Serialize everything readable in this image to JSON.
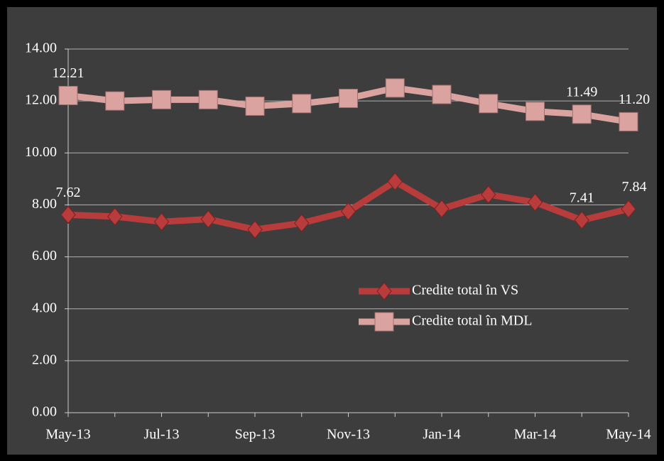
{
  "chart_data": {
    "type": "line",
    "categories": [
      "May-13",
      null,
      "Jul-13",
      null,
      "Sep-13",
      null,
      "Nov-13",
      null,
      "Jan-14",
      null,
      "Mar-14",
      null,
      "May-14"
    ],
    "series": [
      {
        "name": "Credite total în VS",
        "color": "#b83c3c",
        "marker": "diamond",
        "values": [
          7.62,
          7.55,
          7.35,
          7.45,
          7.05,
          7.3,
          7.75,
          8.9,
          7.85,
          8.4,
          8.1,
          7.41,
          7.84
        ],
        "value_labels": [
          "7.62",
          null,
          null,
          null,
          null,
          null,
          null,
          null,
          null,
          null,
          null,
          "7.41",
          "7.84"
        ]
      },
      {
        "name": "Credite total în MDL",
        "color": "#dba3a0",
        "marker": "square",
        "values": [
          12.21,
          12.0,
          12.05,
          12.05,
          11.8,
          11.9,
          12.1,
          12.5,
          12.25,
          11.9,
          11.6,
          11.49,
          11.2
        ],
        "value_labels": [
          "12.21",
          null,
          null,
          null,
          null,
          null,
          null,
          null,
          null,
          null,
          null,
          "11.49",
          "11.20"
        ]
      }
    ],
    "ylim": [
      0,
      14
    ],
    "yticks": [
      {
        "value": 0,
        "label": "0.00"
      },
      {
        "value": 2,
        "label": "2.00"
      },
      {
        "value": 4,
        "label": "4.00"
      },
      {
        "value": 6,
        "label": "6.00"
      },
      {
        "value": 8,
        "label": "8.00"
      },
      {
        "value": 10,
        "label": "10.00"
      },
      {
        "value": 12,
        "label": "12.00"
      },
      {
        "value": 14,
        "label": "14.00"
      }
    ],
    "grid": true,
    "legend": "right"
  }
}
